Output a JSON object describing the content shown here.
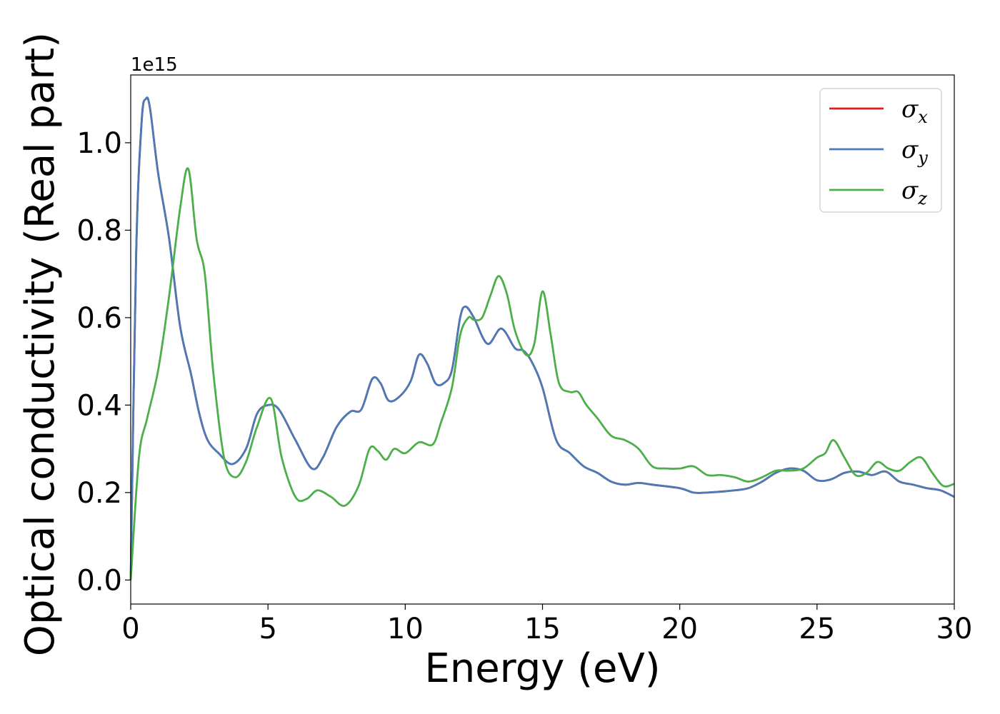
{
  "chart_data": {
    "type": "line",
    "xlabel": "Energy (eV)",
    "ylabel": "Optical conductivity (Real part)",
    "y_offset_label": "1e15",
    "xlim": [
      0,
      30
    ],
    "ylim": [
      -0.055,
      1.155
    ],
    "xticks": [
      0,
      5,
      10,
      15,
      20,
      25,
      30
    ],
    "xtick_labels": [
      "0",
      "5",
      "10",
      "15",
      "20",
      "25",
      "30"
    ],
    "yticks": [
      0.0,
      0.2,
      0.4,
      0.6,
      0.8,
      1.0
    ],
    "ytick_labels": [
      "0.0",
      "0.2",
      "0.4",
      "0.6",
      "0.8",
      "1.0"
    ],
    "grid": false,
    "legend_position": "top-right",
    "series": [
      {
        "name": "σ_x",
        "legend_symbol": "σ",
        "legend_subscript": "x",
        "color": "#e41a1c",
        "x": [
          0,
          0.2,
          0.4,
          0.55,
          0.7,
          1.0,
          1.4,
          1.8,
          2.2,
          2.5,
          2.8,
          3.2,
          3.7,
          4.2,
          4.6,
          5.0,
          5.4,
          6.0,
          6.6,
          7.0,
          7.5,
          8.0,
          8.4,
          8.8,
          9.1,
          9.4,
          9.8,
          10.2,
          10.5,
          10.8,
          11.1,
          11.4,
          11.7,
          12.0,
          12.2,
          12.5,
          13.0,
          13.5,
          14.0,
          14.3,
          14.6,
          15.0,
          15.5,
          16.0,
          16.5,
          17.0,
          17.5,
          18.0,
          18.5,
          19.0,
          20.0,
          20.5,
          21.0,
          22.0,
          22.5,
          23.0,
          23.5,
          24.0,
          24.5,
          25.0,
          25.5,
          26.0,
          26.5,
          27.0,
          27.5,
          28.0,
          28.5,
          29.0,
          29.5,
          30.0
        ],
        "y": [
          0.0,
          0.75,
          1.05,
          1.1,
          1.08,
          0.93,
          0.78,
          0.58,
          0.47,
          0.38,
          0.32,
          0.29,
          0.265,
          0.3,
          0.38,
          0.4,
          0.39,
          0.32,
          0.255,
          0.28,
          0.35,
          0.385,
          0.39,
          0.46,
          0.45,
          0.41,
          0.42,
          0.455,
          0.515,
          0.495,
          0.45,
          0.45,
          0.48,
          0.6,
          0.625,
          0.6,
          0.54,
          0.575,
          0.53,
          0.525,
          0.5,
          0.44,
          0.32,
          0.29,
          0.26,
          0.245,
          0.225,
          0.218,
          0.222,
          0.218,
          0.21,
          0.2,
          0.2,
          0.205,
          0.21,
          0.225,
          0.245,
          0.255,
          0.25,
          0.228,
          0.23,
          0.245,
          0.248,
          0.24,
          0.248,
          0.225,
          0.218,
          0.21,
          0.205,
          0.19
        ]
      },
      {
        "name": "σ_y",
        "legend_symbol": "σ",
        "legend_subscript": "y",
        "color": "#4a7ab8",
        "x": [
          0,
          0.2,
          0.4,
          0.55,
          0.7,
          1.0,
          1.4,
          1.8,
          2.2,
          2.5,
          2.8,
          3.2,
          3.7,
          4.2,
          4.6,
          5.0,
          5.4,
          6.0,
          6.6,
          7.0,
          7.5,
          8.0,
          8.4,
          8.8,
          9.1,
          9.4,
          9.8,
          10.2,
          10.5,
          10.8,
          11.1,
          11.4,
          11.7,
          12.0,
          12.2,
          12.5,
          13.0,
          13.5,
          14.0,
          14.3,
          14.6,
          15.0,
          15.5,
          16.0,
          16.5,
          17.0,
          17.5,
          18.0,
          18.5,
          19.0,
          20.0,
          20.5,
          21.0,
          22.0,
          22.5,
          23.0,
          23.5,
          24.0,
          24.5,
          25.0,
          25.5,
          26.0,
          26.5,
          27.0,
          27.5,
          28.0,
          28.5,
          29.0,
          29.5,
          30.0
        ],
        "y": [
          0.0,
          0.75,
          1.05,
          1.1,
          1.08,
          0.93,
          0.78,
          0.58,
          0.47,
          0.38,
          0.32,
          0.29,
          0.265,
          0.3,
          0.38,
          0.4,
          0.39,
          0.32,
          0.255,
          0.28,
          0.35,
          0.385,
          0.39,
          0.46,
          0.45,
          0.41,
          0.42,
          0.455,
          0.515,
          0.495,
          0.45,
          0.45,
          0.48,
          0.6,
          0.625,
          0.6,
          0.54,
          0.575,
          0.53,
          0.525,
          0.5,
          0.44,
          0.32,
          0.29,
          0.26,
          0.245,
          0.225,
          0.218,
          0.222,
          0.218,
          0.21,
          0.2,
          0.2,
          0.205,
          0.21,
          0.225,
          0.245,
          0.255,
          0.25,
          0.228,
          0.23,
          0.245,
          0.248,
          0.24,
          0.248,
          0.225,
          0.218,
          0.21,
          0.205,
          0.19
        ]
      },
      {
        "name": "σ_z",
        "legend_symbol": "σ",
        "legend_subscript": "z",
        "color": "#4daf4a",
        "x": [
          0,
          0.3,
          0.6,
          1.0,
          1.4,
          1.8,
          2.1,
          2.4,
          2.7,
          3.0,
          3.4,
          3.8,
          4.2,
          4.6,
          5.1,
          5.5,
          6.0,
          6.4,
          6.8,
          7.3,
          7.8,
          8.3,
          8.7,
          9.0,
          9.3,
          9.6,
          10.0,
          10.5,
          11.0,
          11.3,
          11.7,
          12.0,
          12.3,
          12.5,
          12.8,
          13.1,
          13.4,
          13.7,
          14.0,
          14.4,
          14.7,
          15.0,
          15.3,
          15.6,
          16.0,
          16.3,
          16.6,
          17.0,
          17.5,
          18.0,
          18.5,
          19.0,
          19.5,
          20.0,
          20.5,
          21.0,
          21.5,
          22.0,
          22.5,
          23.0,
          23.5,
          24.0,
          24.5,
          25.0,
          25.3,
          25.6,
          26.0,
          26.4,
          26.8,
          27.2,
          27.6,
          28.0,
          28.4,
          28.8,
          29.2,
          29.6,
          30.0
        ],
        "y": [
          0.0,
          0.28,
          0.37,
          0.48,
          0.65,
          0.85,
          0.94,
          0.78,
          0.7,
          0.48,
          0.28,
          0.235,
          0.27,
          0.35,
          0.415,
          0.28,
          0.19,
          0.185,
          0.205,
          0.19,
          0.17,
          0.215,
          0.3,
          0.295,
          0.275,
          0.3,
          0.29,
          0.315,
          0.31,
          0.36,
          0.44,
          0.56,
          0.6,
          0.595,
          0.6,
          0.65,
          0.695,
          0.655,
          0.57,
          0.515,
          0.54,
          0.66,
          0.56,
          0.45,
          0.43,
          0.43,
          0.4,
          0.37,
          0.33,
          0.32,
          0.3,
          0.26,
          0.255,
          0.255,
          0.26,
          0.24,
          0.24,
          0.235,
          0.225,
          0.235,
          0.25,
          0.25,
          0.255,
          0.28,
          0.29,
          0.32,
          0.28,
          0.24,
          0.245,
          0.27,
          0.255,
          0.25,
          0.27,
          0.28,
          0.245,
          0.215,
          0.22
        ]
      }
    ]
  }
}
